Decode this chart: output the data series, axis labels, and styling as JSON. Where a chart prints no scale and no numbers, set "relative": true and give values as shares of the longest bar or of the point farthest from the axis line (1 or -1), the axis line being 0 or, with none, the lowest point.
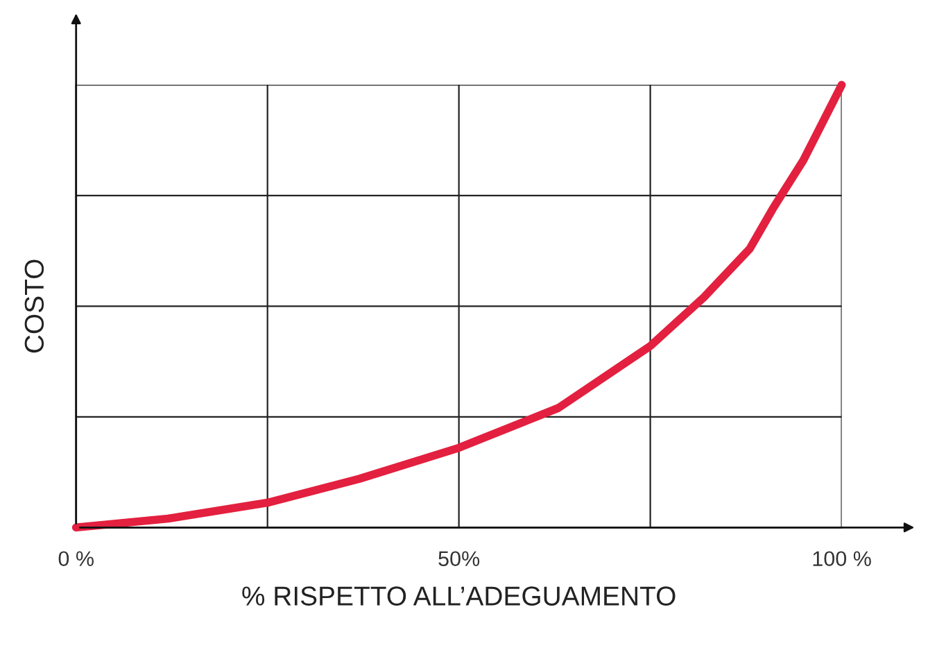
{
  "chart_data": {
    "type": "line",
    "relative": true,
    "xlabel": "% RISPETTO ALL’ADEGUAMENTO",
    "ylabel": "COSTO",
    "xlim": [
      0,
      100
    ],
    "xticks": [
      {
        "value": 0,
        "label": "0 %"
      },
      {
        "value": 25,
        "label": null
      },
      {
        "value": 50,
        "label": "50%"
      },
      {
        "value": 75,
        "label": null
      },
      {
        "value": 100,
        "label": "100 %"
      }
    ],
    "grid": true,
    "marker": "none",
    "line_style": "solid",
    "series": [
      {
        "color": "#e3203f",
        "x": [
          0,
          12,
          25,
          37,
          50,
          63,
          75,
          82,
          88,
          91,
          95,
          100
        ],
        "values": [
          0,
          0.02,
          0.056,
          0.11,
          0.18,
          0.27,
          0.41,
          0.52,
          0.63,
          0.72,
          0.83,
          1
        ]
      }
    ]
  }
}
